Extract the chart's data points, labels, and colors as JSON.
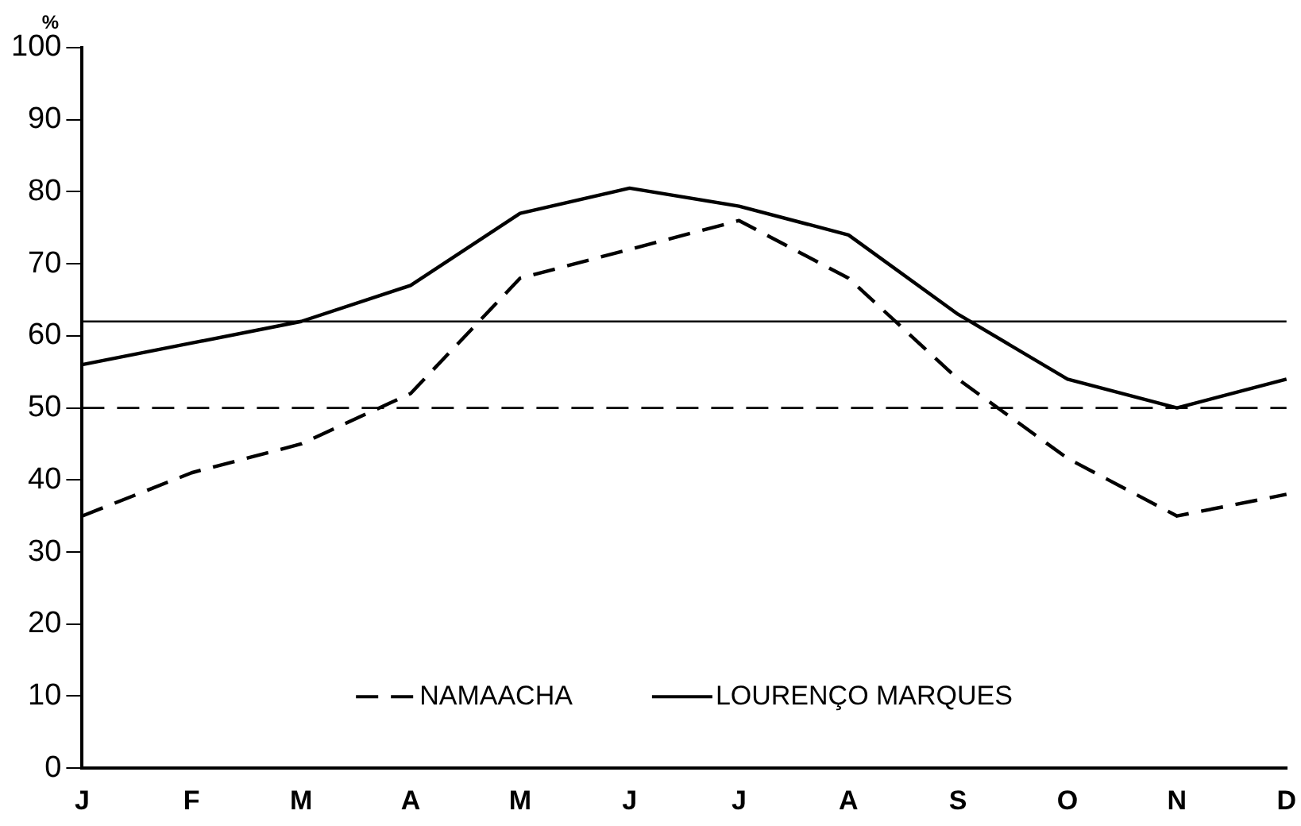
{
  "chart_data": {
    "type": "line",
    "ylabel": "%",
    "categories": [
      "J",
      "F",
      "M",
      "A",
      "M",
      "J",
      "J",
      "A",
      "S",
      "O",
      "N",
      "D"
    ],
    "series": [
      {
        "name": "NAMAACHA",
        "color": "#000000",
        "line_style": "dashed",
        "values": [
          35,
          41,
          45,
          52,
          68,
          72,
          76,
          68,
          54,
          43,
          35,
          38
        ]
      },
      {
        "name": "LOURENÇO MARQUES",
        "color": "#000000",
        "line_style": "solid",
        "values": [
          56,
          59,
          62,
          67,
          77,
          80.5,
          78,
          74,
          63,
          54,
          50,
          54
        ]
      }
    ],
    "ref_lines": [
      {
        "axis": "y",
        "value": 62,
        "color": "#000000",
        "line_style": "solid"
      },
      {
        "axis": "y",
        "value": 50,
        "color": "#000000",
        "line_style": "dashed"
      }
    ],
    "ylim": [
      0,
      100
    ],
    "yticks": [
      0,
      10,
      20,
      30,
      40,
      50,
      60,
      70,
      80,
      90,
      100
    ],
    "grid": false,
    "legend": "bottom",
    "marker": "none"
  }
}
